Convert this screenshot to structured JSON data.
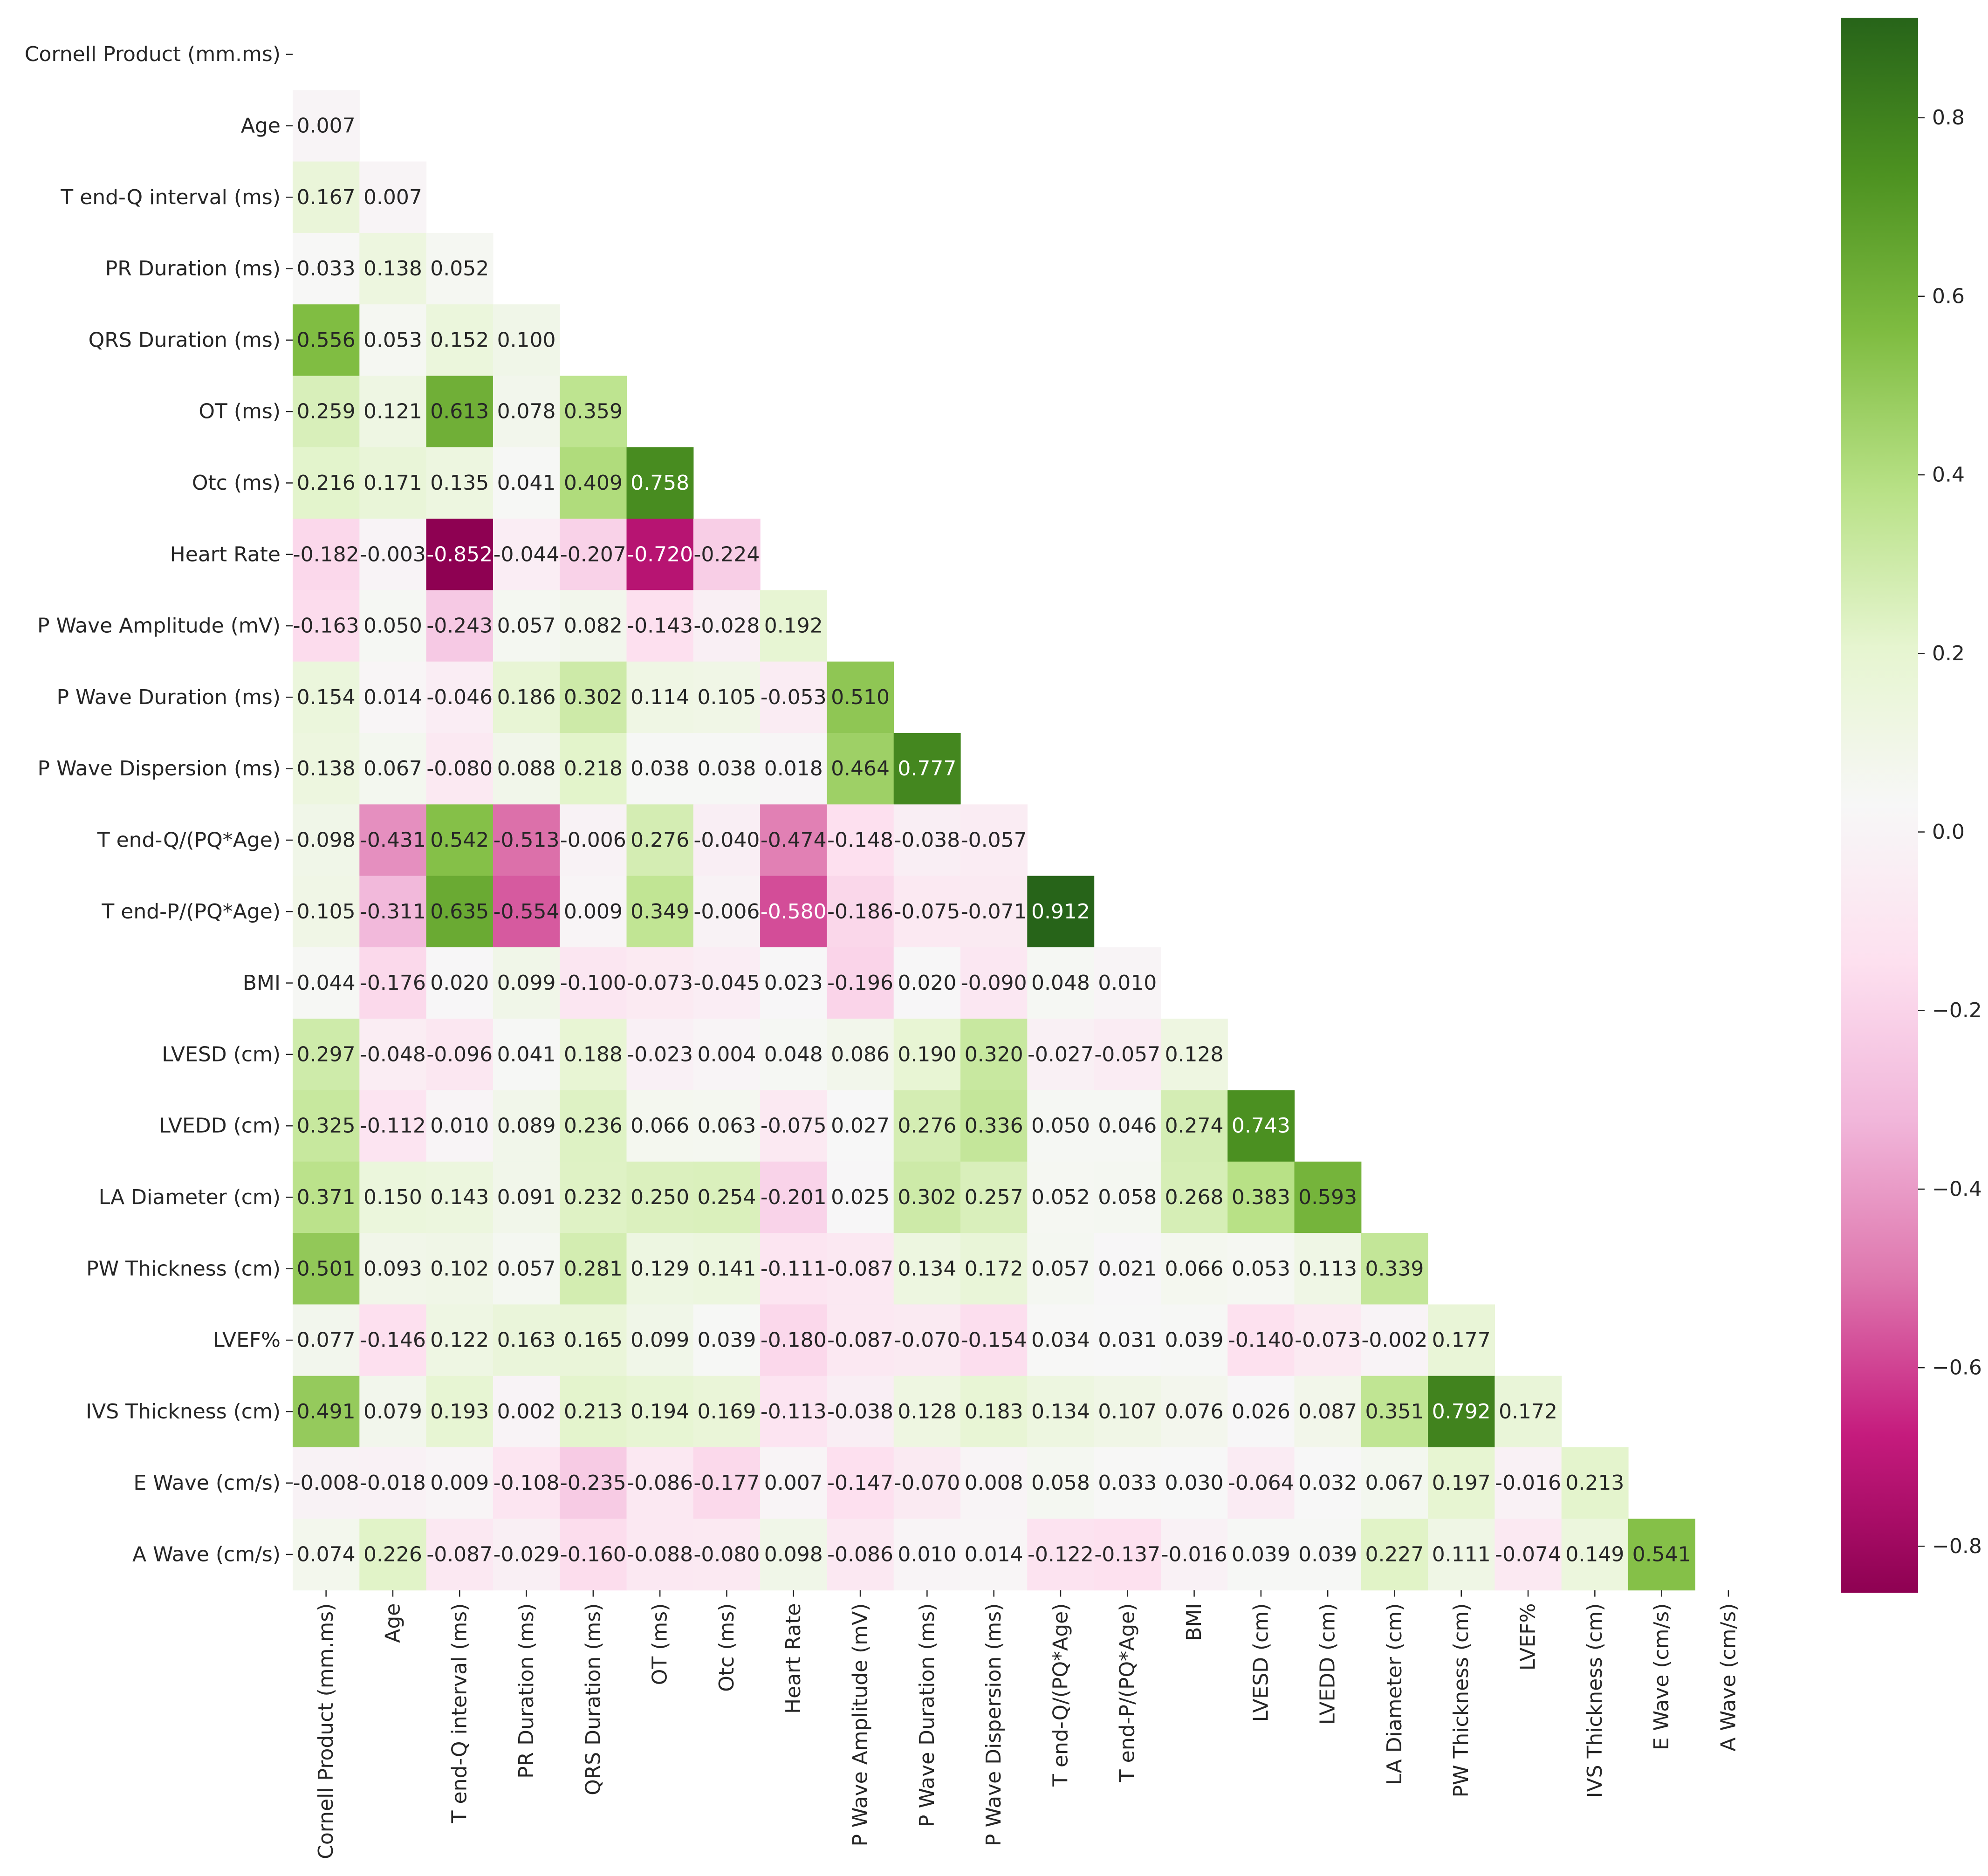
{
  "chart_data": {
    "type": "heatmap",
    "style": "lower-triangle correlation matrix",
    "title": "",
    "xlabel": "",
    "ylabel": "",
    "labels": [
      "Cornell Product (mm.ms)",
      "Age",
      "T end-Q interval (ms)",
      "PR Duration (ms)",
      "QRS Duration (ms)",
      "OT (ms)",
      "Otc (ms)",
      "Heart Rate",
      "P Wave Amplitude (mV)",
      "P Wave Duration (ms)",
      "P Wave Dispersion (ms)",
      "T end-Q/(PQ*Age)",
      "T end-P/(PQ*Age)",
      "BMI",
      "LVESD (cm)",
      "LVEDD (cm)",
      "LA Diameter (cm)",
      "PW Thickness (cm)",
      "LVEF%",
      "IVS Thickness (cm)",
      "E Wave (cm/s)",
      "A Wave (cm/s)"
    ],
    "values": [
      [],
      [
        "0.007"
      ],
      [
        "0.167",
        "0.007"
      ],
      [
        "0.033",
        "0.138",
        "0.052"
      ],
      [
        "0.556",
        "0.053",
        "0.152",
        "0.100"
      ],
      [
        "0.259",
        "0.121",
        "0.613",
        "0.078",
        "0.359"
      ],
      [
        "0.216",
        "0.171",
        "0.135",
        "0.041",
        "0.409",
        "0.758"
      ],
      [
        "-0.182",
        "-0.003",
        "-0.852",
        "-0.044",
        "-0.207",
        "-0.720",
        "-0.224"
      ],
      [
        "-0.163",
        "0.050",
        "-0.243",
        "0.057",
        "0.082",
        "-0.143",
        "-0.028",
        "0.192"
      ],
      [
        "0.154",
        "0.014",
        "-0.046",
        "0.186",
        "0.302",
        "0.114",
        "0.105",
        "-0.053",
        "0.510"
      ],
      [
        "0.138",
        "0.067",
        "-0.080",
        "0.088",
        "0.218",
        "0.038",
        "0.038",
        "0.018",
        "0.464",
        "0.777"
      ],
      [
        "0.098",
        "-0.431",
        "0.542",
        "-0.513",
        "-0.006",
        "0.276",
        "-0.040",
        "-0.474",
        "-0.148",
        "-0.038",
        "-0.057"
      ],
      [
        "0.105",
        "-0.311",
        "0.635",
        "-0.554",
        "0.009",
        "0.349",
        "-0.006",
        "-0.580",
        "-0.186",
        "-0.075",
        "-0.071",
        "0.912"
      ],
      [
        "0.044",
        "-0.176",
        "0.020",
        "0.099",
        "-0.100",
        "-0.073",
        "-0.045",
        "0.023",
        "-0.196",
        "0.020",
        "-0.090",
        "0.048",
        "0.010"
      ],
      [
        "0.297",
        "-0.048",
        "-0.096",
        "0.041",
        "0.188",
        "-0.023",
        "0.004",
        "0.048",
        "0.086",
        "0.190",
        "0.320",
        "-0.027",
        "-0.057",
        "0.128"
      ],
      [
        "0.325",
        "-0.112",
        "0.010",
        "0.089",
        "0.236",
        "0.066",
        "0.063",
        "-0.075",
        "0.027",
        "0.276",
        "0.336",
        "0.050",
        "0.046",
        "0.274",
        "0.743"
      ],
      [
        "0.371",
        "0.150",
        "0.143",
        "0.091",
        "0.232",
        "0.250",
        "0.254",
        "-0.201",
        "0.025",
        "0.302",
        "0.257",
        "0.052",
        "0.058",
        "0.268",
        "0.383",
        "0.593"
      ],
      [
        "0.501",
        "0.093",
        "0.102",
        "0.057",
        "0.281",
        "0.129",
        "0.141",
        "-0.111",
        "-0.087",
        "0.134",
        "0.172",
        "0.057",
        "0.021",
        "0.066",
        "0.053",
        "0.113",
        "0.339"
      ],
      [
        "0.077",
        "-0.146",
        "0.122",
        "0.163",
        "0.165",
        "0.099",
        "0.039",
        "-0.180",
        "-0.087",
        "-0.070",
        "-0.154",
        "0.034",
        "0.031",
        "0.039",
        "-0.140",
        "-0.073",
        "-0.002",
        "0.177"
      ],
      [
        "0.491",
        "0.079",
        "0.193",
        "0.002",
        "0.213",
        "0.194",
        "0.169",
        "-0.113",
        "-0.038",
        "0.128",
        "0.183",
        "0.134",
        "0.107",
        "0.076",
        "0.026",
        "0.087",
        "0.351",
        "0.792",
        "0.172"
      ],
      [
        "-0.008",
        "-0.018",
        "0.009",
        "-0.108",
        "-0.235",
        "-0.086",
        "-0.177",
        "0.007",
        "-0.147",
        "-0.070",
        "0.008",
        "0.058",
        "0.033",
        "0.030",
        "-0.064",
        "0.032",
        "0.067",
        "0.197",
        "-0.016",
        "0.213"
      ],
      [
        "0.074",
        "0.226",
        "-0.087",
        "-0.029",
        "-0.160",
        "-0.088",
        "-0.080",
        "0.098",
        "-0.086",
        "0.010",
        "0.014",
        "-0.122",
        "-0.137",
        "-0.016",
        "0.039",
        "0.039",
        "0.227",
        "0.111",
        "-0.074",
        "0.149",
        "0.541"
      ]
    ],
    "colorbar": {
      "colormap": "PiYG",
      "vmin": -0.852,
      "vmax": 0.912,
      "ticks": [
        "0.8",
        "0.6",
        "0.4",
        "0.2",
        "0.0",
        "−0.2",
        "−0.4",
        "−0.6",
        "−0.8"
      ],
      "tick_values": [
        0.8,
        0.6,
        0.4,
        0.2,
        0.0,
        -0.2,
        -0.4,
        -0.6,
        -0.8
      ],
      "placement": "right"
    },
    "grid": false
  }
}
